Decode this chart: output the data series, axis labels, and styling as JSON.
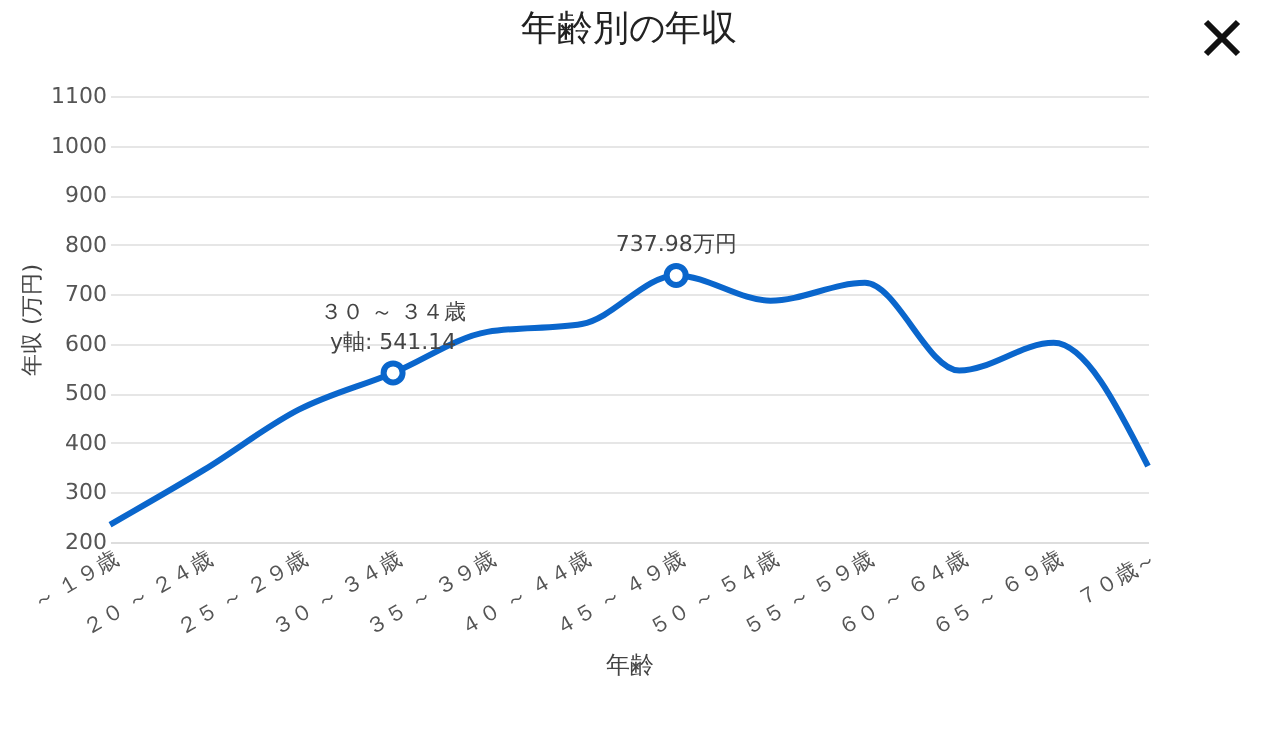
{
  "chart_data": {
    "type": "line",
    "title": "年齢別の年収",
    "xlabel": "年齢",
    "ylabel": "年収 (万円)",
    "categories": [
      "～ １９歳",
      "２０ ～ ２４歳",
      "２５ ～ ２９歳",
      "３０ ～ ３４歳",
      "３５ ～ ３９歳",
      "４０ ～ ４４歳",
      "４５ ～ ４９歳",
      "５０ ～ ５４歳",
      "５５ ～ ５９歳",
      "６０ ～ ６４歳",
      "６５ ～ ６９歳",
      "７０歳～"
    ],
    "series": [
      {
        "color": "#0a66cc",
        "marker": "none",
        "values": [
          235,
          346,
          467,
          541.14,
          624,
          640,
          737.98,
          687,
          723,
          546,
          602,
          353
        ]
      },
      {
        "type": "scatter",
        "color": "#0a66cc",
        "marker": "circle",
        "x": [
          "３０ ～ ３４歳",
          "４５ ～ ４９歳"
        ],
        "values": [
          541.14,
          737.98
        ]
      }
    ],
    "ylim": [
      200,
      1100
    ],
    "yticks": [
      200,
      300,
      400,
      500,
      600,
      700,
      800,
      900,
      1000,
      1100
    ],
    "grid": "y",
    "line_style": "solid",
    "annotations": [
      {
        "text": "737.98万円",
        "x": "４５ ～ ４９歳",
        "y": 737.98
      },
      {
        "text": "y軸: 541.14",
        "x": "３０ ～ ３４歳",
        "y": 541.14
      },
      {
        "text": "３０ ～ ３４歳",
        "x": "３０ ～ ３４歳",
        "y": 541.14
      }
    ]
  }
}
